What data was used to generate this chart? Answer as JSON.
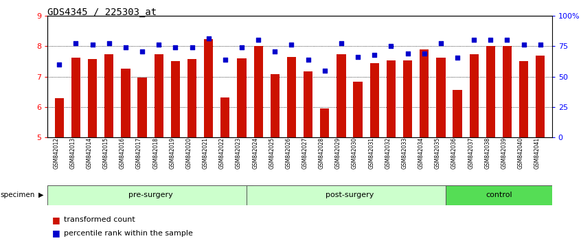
{
  "title": "GDS4345 / 225303_at",
  "samples": [
    "GSM842012",
    "GSM842013",
    "GSM842014",
    "GSM842015",
    "GSM842016",
    "GSM842017",
    "GSM842018",
    "GSM842019",
    "GSM842020",
    "GSM842021",
    "GSM842022",
    "GSM842023",
    "GSM842024",
    "GSM842025",
    "GSM842026",
    "GSM842027",
    "GSM842028",
    "GSM842029",
    "GSM842030",
    "GSM842031",
    "GSM842032",
    "GSM842033",
    "GSM842034",
    "GSM842035",
    "GSM842036",
    "GSM842037",
    "GSM842038",
    "GSM842039",
    "GSM842040",
    "GSM842041"
  ],
  "red_values": [
    6.28,
    7.63,
    7.57,
    7.73,
    7.27,
    6.97,
    7.73,
    7.52,
    7.57,
    8.23,
    6.3,
    7.6,
    8.0,
    7.08,
    7.65,
    7.17,
    5.95,
    7.73,
    6.83,
    7.43,
    7.53,
    7.53,
    7.9,
    7.63,
    6.57,
    7.73,
    8.0,
    8.0,
    7.5,
    7.68
  ],
  "blue_values": [
    7.4,
    8.1,
    8.05,
    8.1,
    7.95,
    7.82,
    8.05,
    7.95,
    7.95,
    8.25,
    7.55,
    7.95,
    8.2,
    7.82,
    8.05,
    7.55,
    7.2,
    8.1,
    7.65,
    7.72,
    8.0,
    7.75,
    7.75,
    8.1,
    7.62,
    8.2,
    8.2,
    8.2,
    8.05,
    8.05
  ],
  "groups": [
    {
      "label": "pre-surgery",
      "start": 0,
      "end": 12,
      "color": "#ccffcc"
    },
    {
      "label": "post-surgery",
      "start": 12,
      "end": 24,
      "color": "#ccffcc"
    },
    {
      "label": "control",
      "start": 24,
      "end": 30,
      "color": "#55dd55"
    }
  ],
  "ylim": [
    5,
    9
  ],
  "yticks_left": [
    5,
    6,
    7,
    8,
    9
  ],
  "yticks_right_pct": [
    0,
    25,
    50,
    75,
    100
  ],
  "bar_color": "#cc1100",
  "dot_color": "#0000cc",
  "bar_bottom": 5.0,
  "title_fontsize": 10
}
